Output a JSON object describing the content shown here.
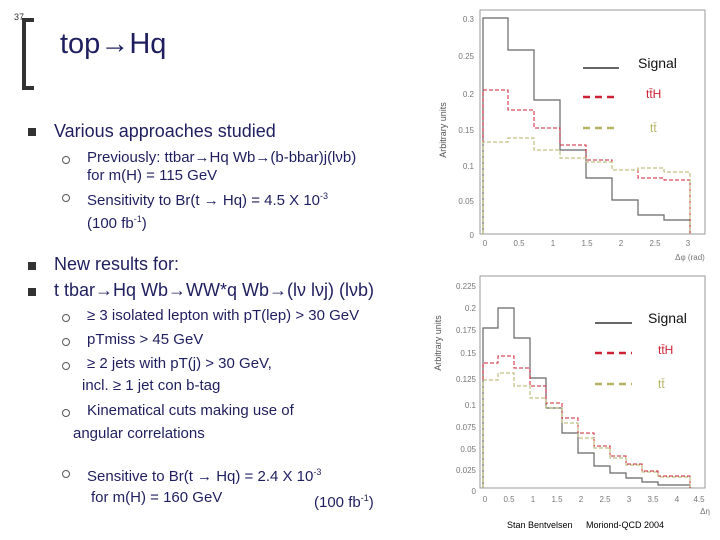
{
  "slide_number": "37",
  "title": "top→Hq",
  "bullets": {
    "b1": "Various approaches studied",
    "b1_sub1_a": "Previously: ttbar→Hq Wb→(b-bbar)j(lνb)",
    "b1_sub1_b": "for m(H) = 115 GeV",
    "b1_sub2_a": "Sensitivity to Br(t → Hq) = 4.5 X 10",
    "b1_sub2_exp": "-3",
    "b1_sub2_b_pre": "(100 fb",
    "b1_sub2_b_exp": "-1",
    "b1_sub2_b_post": ")",
    "b2": "New results for:",
    "b3": "t tbar→Hq Wb→WW*q Wb→(lν lνj) (lνb)",
    "b3_sub1": "≥ 3 isolated lepton with pT(lep) > 30 GeV",
    "b3_sub2": "pTmiss > 45 GeV",
    "b3_sub3_a": "≥ 2 jets with pT(j) > 30 GeV,",
    "b3_sub3_b": "incl. ≥ 1 jet con b-tag",
    "b3_sub4_a": "Kinematical cuts making use of",
    "b3_sub4_b": "angular correlations",
    "b3_sub5_a": "Sensitive to Br(t → Hq) = 2.4 X 10",
    "b3_sub5_exp": "-3",
    "b3_sub5_b": "for m(H) = 160 GeV",
    "b3_sub5_c_pre": "(100 fb",
    "b3_sub5_c_exp": "-1",
    "b3_sub5_c_post": ")"
  },
  "plot_top": {
    "ylabel": "Arbitrary units",
    "yticks": [
      "0.3",
      "0.25",
      "0.2",
      "0.15",
      "0.1",
      "0.05",
      "0"
    ],
    "xticks": [
      "0",
      "0.5",
      "1",
      "1.5",
      "2",
      "2.5",
      "3"
    ],
    "xlabel": "Δφ (rad)",
    "legend": [
      "Signal",
      "tt̄H",
      "tt̄"
    ]
  },
  "plot_bottom": {
    "ylabel": "Arbitrary units",
    "yticks": [
      "0.225",
      "0.2",
      "0.175",
      "0.15",
      "0.125",
      "0.1",
      "0.075",
      "0.05",
      "0.025",
      "0"
    ],
    "xticks": [
      "0",
      "0.5",
      "1",
      "1.5",
      "2",
      "2.5",
      "3",
      "3.5",
      "4",
      "4.5"
    ],
    "xlabel": "Δη",
    "legend": [
      "Signal",
      "tt̄H",
      "tt̄"
    ]
  },
  "footer": {
    "author": "Stan Bentvelsen",
    "event": "Moriond-QCD 2004"
  },
  "colors": {
    "signal": "#333333",
    "tth": "#cc2233",
    "tt": "#b6b266",
    "text": "#1f1f5f"
  }
}
